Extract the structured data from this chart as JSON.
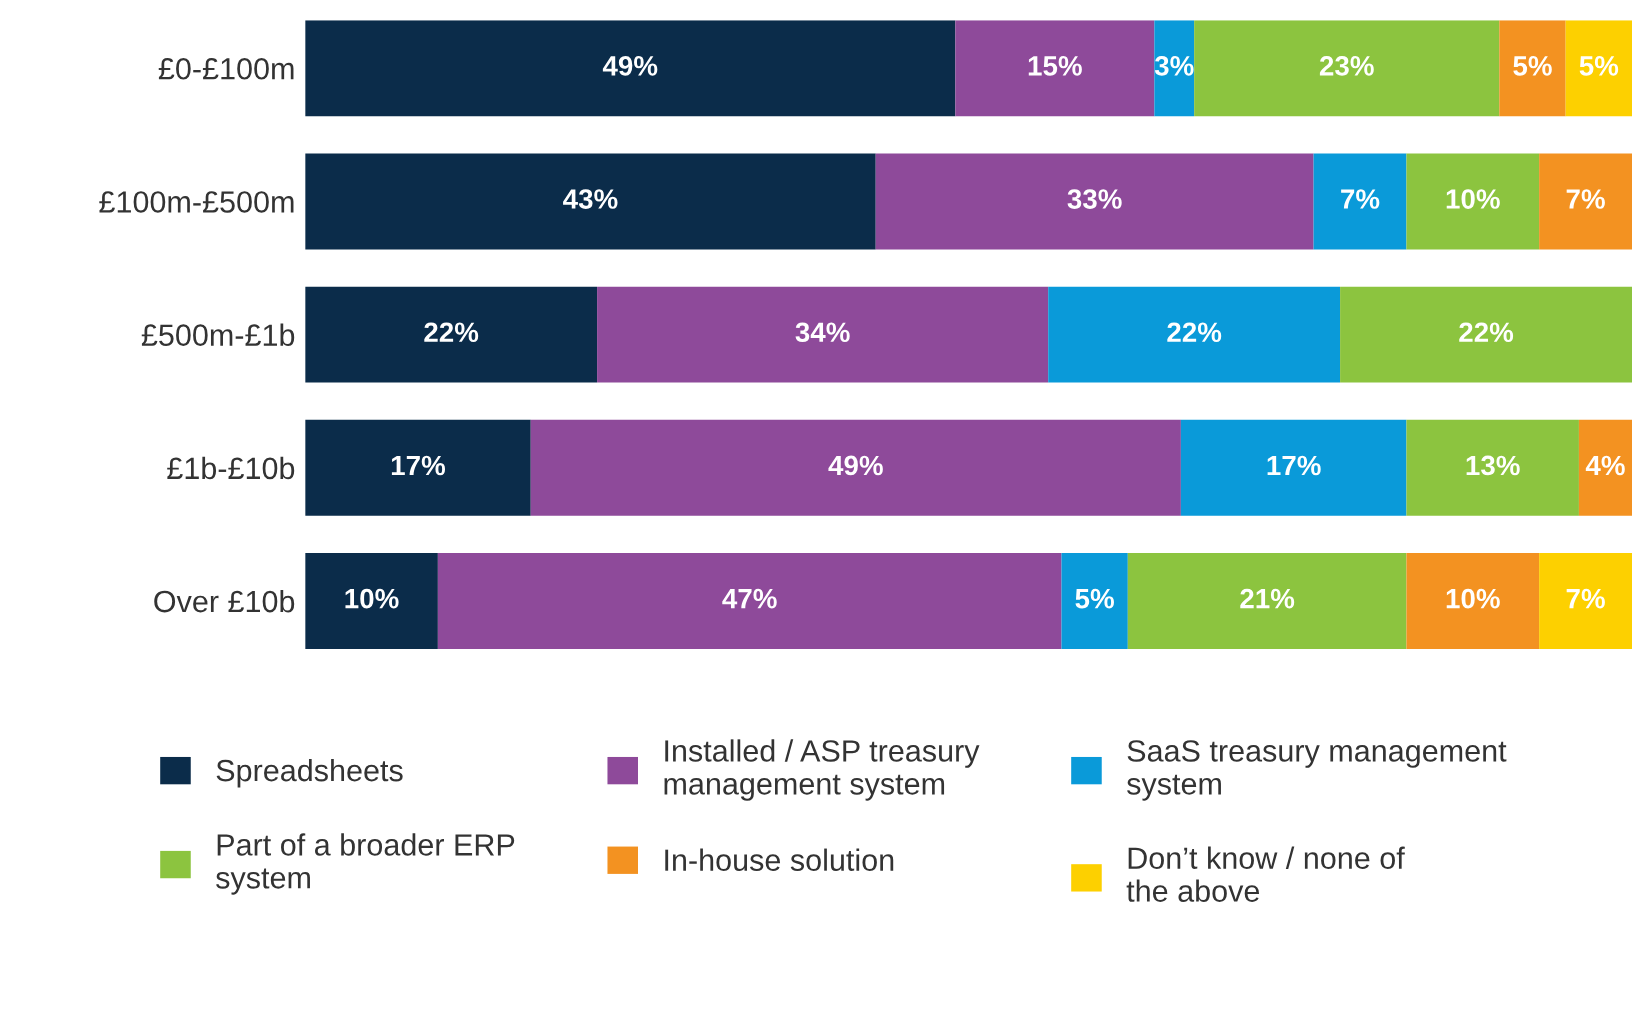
{
  "chart_data": {
    "type": "bar",
    "orientation": "horizontal",
    "stacked": true,
    "legend": "bottom",
    "categories": [
      "£0-£100m",
      "£100m-£500m",
      "£500m-£1b",
      "£1b-£10b",
      "Over £10b"
    ],
    "series": [
      {
        "name": "Spreadsheets",
        "color": "#0b2c4a",
        "values": [
          49,
          43,
          22,
          17,
          10
        ],
        "value_labels": [
          "49%",
          "43%",
          "22%",
          "17%",
          "10%"
        ]
      },
      {
        "name": "Installed / ASP treasury\nmanagement system",
        "color": "#8e4a9a",
        "values": [
          15,
          33,
          34,
          49,
          47
        ],
        "value_labels": [
          "15%",
          "33%",
          "34%",
          "49%",
          "47%"
        ]
      },
      {
        "name": "SaaS treasury management\nsystem",
        "color": "#0a9ad9",
        "values": [
          3,
          7,
          22,
          17,
          5
        ],
        "value_labels": [
          "3%",
          "7%",
          "22%",
          "17%",
          "5%"
        ]
      },
      {
        "name": "Part of a broader ERP\nsystem",
        "color": "#8cc43f",
        "values": [
          23,
          10,
          22,
          13,
          21
        ],
        "value_labels": [
          "23%",
          "10%",
          "22%",
          "13%",
          "21%"
        ]
      },
      {
        "name": "In-house solution",
        "color": "#f39221",
        "values": [
          5,
          7,
          null,
          4,
          10
        ],
        "value_labels": [
          "5%",
          "7%",
          null,
          "4%",
          "10%"
        ]
      },
      {
        "name": "Don’t know / none of\nthe above",
        "color": "#fdd000",
        "values": [
          5,
          null,
          null,
          null,
          7
        ],
        "value_labels": [
          "5%",
          null,
          null,
          null,
          "7%"
        ]
      }
    ]
  }
}
